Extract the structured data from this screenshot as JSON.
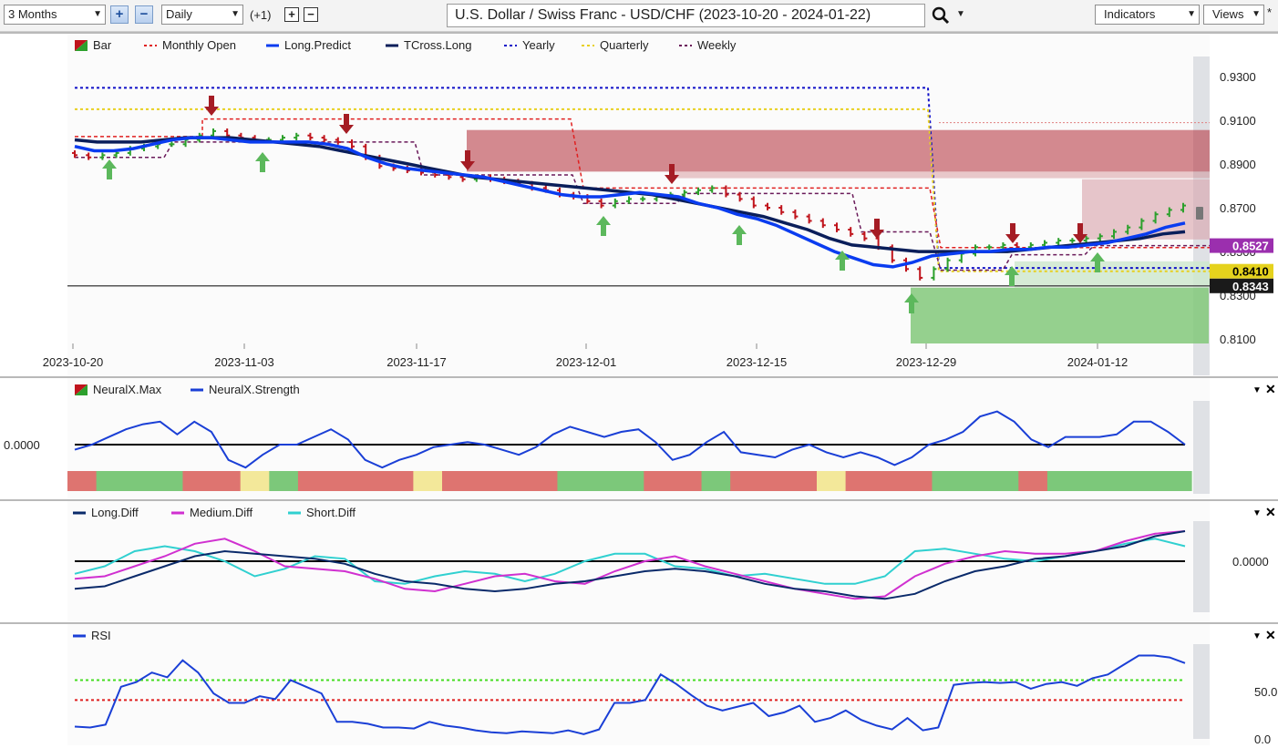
{
  "toolbar": {
    "period": "3 Months",
    "zoom_in": "+",
    "zoom_out": "−",
    "interval": "Daily",
    "offset": "(+1)",
    "plus": "+",
    "minus": "−",
    "title": "U.S. Dollar / Swiss Franc - USD/CHF (2023-10-20 - 2024-01-22)",
    "indicators": "Indicators",
    "views": "Views",
    "asterisk": "*"
  },
  "colors": {
    "bull": "#2ca02c",
    "bear": "#c0141c",
    "long_predict": "#0a3cf0",
    "tcross_long": "#0a1e5a",
    "yearly": "#1010c8",
    "quarterly": "#e8d020",
    "weekly": "#6a1a5a",
    "monthly_open": "#e02020"
  },
  "chart_data": [
    {
      "id": "price",
      "type": "line",
      "legend": [
        {
          "name": "Bar",
          "style": "swatch"
        },
        {
          "name": "Monthly Open",
          "style": "dash",
          "color": "#e02020"
        },
        {
          "name": "Long.Predict",
          "style": "solid",
          "color": "#0a3cf0"
        },
        {
          "name": "TCross.Long",
          "style": "solid",
          "color": "#0a1e5a"
        },
        {
          "name": "Yearly",
          "style": "dash",
          "color": "#1010c8"
        },
        {
          "name": "Quarterly",
          "style": "dash",
          "color": "#e8d020"
        },
        {
          "name": "Weekly",
          "style": "dash",
          "color": "#6a1a5a"
        }
      ],
      "x_labels": [
        "2023-10-20",
        "2023-11-03",
        "2023-11-17",
        "2023-12-01",
        "2023-12-15",
        "2023-12-29",
        "2024-01-12"
      ],
      "y_ticks": [
        "0.9300",
        "0.9100",
        "0.8900",
        "0.8700",
        "0.8500",
        "0.8300",
        "0.8100"
      ],
      "ylim": [
        0.808,
        0.937
      ],
      "price_tags": [
        {
          "label": "0.8527",
          "value": 0.8527,
          "bg": "#9b2fae",
          "fg": "#ffffff"
        },
        {
          "label": "0.8410",
          "value": 0.841,
          "bg": "#e5d21d",
          "fg": "#000000"
        },
        {
          "label": "0.8343",
          "value": 0.8343,
          "bg": "#1a1a1a",
          "fg": "#ffffff"
        }
      ],
      "closes": [
        0.894,
        0.893,
        0.894,
        0.895,
        0.897,
        0.898,
        0.899,
        0.899,
        0.901,
        0.903,
        0.905,
        0.903,
        0.902,
        0.901,
        0.901,
        0.902,
        0.903,
        0.902,
        0.901,
        0.9,
        0.898,
        0.893,
        0.889,
        0.888,
        0.887,
        0.886,
        0.885,
        0.884,
        0.883,
        0.884,
        0.883,
        0.882,
        0.881,
        0.879,
        0.878,
        0.876,
        0.875,
        0.873,
        0.871,
        0.873,
        0.874,
        0.874,
        0.875,
        0.876,
        0.877,
        0.878,
        0.879,
        0.876,
        0.874,
        0.871,
        0.87,
        0.868,
        0.866,
        0.864,
        0.862,
        0.86,
        0.858,
        0.856,
        0.852,
        0.846,
        0.842,
        0.838,
        0.842,
        0.846,
        0.849,
        0.852,
        0.852,
        0.853,
        0.852,
        0.853,
        0.854,
        0.855,
        0.855,
        0.856,
        0.857,
        0.859,
        0.861,
        0.864,
        0.867,
        0.869,
        0.871
      ],
      "long_predict": [
        0.898,
        0.896,
        0.896,
        0.897,
        0.899,
        0.901,
        0.902,
        0.902,
        0.901,
        0.9,
        0.9,
        0.9,
        0.9,
        0.899,
        0.897,
        0.893,
        0.89,
        0.888,
        0.887,
        0.886,
        0.885,
        0.884,
        0.882,
        0.88,
        0.878,
        0.876,
        0.875,
        0.875,
        0.876,
        0.877,
        0.876,
        0.875,
        0.872,
        0.87,
        0.867,
        0.865,
        0.862,
        0.858,
        0.854,
        0.85,
        0.847,
        0.844,
        0.843,
        0.845,
        0.848,
        0.849,
        0.85,
        0.85,
        0.851,
        0.851,
        0.852,
        0.852,
        0.853,
        0.854,
        0.856,
        0.858,
        0.861,
        0.863
      ],
      "tcross_long": [
        0.901,
        0.9,
        0.9,
        0.9,
        0.901,
        0.902,
        0.902,
        0.902,
        0.901,
        0.9,
        0.899,
        0.898,
        0.896,
        0.894,
        0.892,
        0.89,
        0.888,
        0.886,
        0.884,
        0.883,
        0.882,
        0.881,
        0.88,
        0.879,
        0.878,
        0.877,
        0.876,
        0.874,
        0.872,
        0.87,
        0.868,
        0.866,
        0.863,
        0.86,
        0.856,
        0.853,
        0.852,
        0.851,
        0.85,
        0.85,
        0.85,
        0.85,
        0.85,
        0.851,
        0.852,
        0.853,
        0.854,
        0.855,
        0.856,
        0.858,
        0.859
      ],
      "levels": {
        "yearly": 0.9248,
        "quarterly": 0.915,
        "monthly_open": 0.9105,
        "weekly": 0.8527,
        "dark_line": 0.8343
      }
    },
    {
      "id": "neuralx",
      "type": "line",
      "legend": [
        {
          "name": "NeuralX.Max",
          "style": "swatch"
        },
        {
          "name": "NeuralX.Strength",
          "style": "solid",
          "color": "#1a3fd6"
        }
      ],
      "zero_label": "0.0000",
      "strength": [
        -0.2,
        0.0,
        0.3,
        0.6,
        0.8,
        0.9,
        0.4,
        0.9,
        0.5,
        -0.6,
        -0.9,
        -0.4,
        0.0,
        0.0,
        0.3,
        0.6,
        0.2,
        -0.6,
        -0.9,
        -0.6,
        -0.4,
        -0.1,
        0.0,
        0.1,
        0.0,
        -0.2,
        -0.4,
        -0.1,
        0.4,
        0.7,
        0.5,
        0.3,
        0.5,
        0.6,
        0.1,
        -0.6,
        -0.4,
        0.1,
        0.5,
        -0.3,
        -0.4,
        -0.5,
        -0.2,
        0.0,
        -0.3,
        -0.5,
        -0.3,
        -0.5,
        -0.8,
        -0.5,
        0.0,
        0.2,
        0.5,
        1.1,
        1.3,
        0.9,
        0.2,
        -0.1,
        0.3,
        0.3,
        0.3,
        0.4,
        0.9,
        0.9,
        0.5,
        0.0
      ],
      "state_bar": [
        "R",
        "G",
        "G",
        "G",
        "R",
        "R",
        "Y",
        "G",
        "R",
        "R",
        "R",
        "R",
        "Y",
        "R",
        "R",
        "R",
        "R",
        "G",
        "G",
        "G",
        "R",
        "R",
        "G",
        "R",
        "R",
        "R",
        "Y",
        "R",
        "R",
        "R",
        "G",
        "G",
        "G",
        "R",
        "G",
        "G",
        "G",
        "G",
        "G"
      ]
    },
    {
      "id": "diffs",
      "type": "line",
      "legend": [
        {
          "name": "Long.Diff",
          "style": "solid",
          "color": "#0a2a6a"
        },
        {
          "name": "Medium.Diff",
          "style": "solid",
          "color": "#d030d0"
        },
        {
          "name": "Short.Diff",
          "style": "solid",
          "color": "#30d0d0"
        }
      ],
      "zero_label": "0.0000",
      "long_diff": [
        -0.55,
        -0.5,
        -0.3,
        -0.1,
        0.1,
        0.2,
        0.15,
        0.1,
        0.05,
        -0.05,
        -0.25,
        -0.4,
        -0.45,
        -0.55,
        -0.6,
        -0.55,
        -0.45,
        -0.4,
        -0.3,
        -0.2,
        -0.15,
        -0.2,
        -0.3,
        -0.45,
        -0.55,
        -0.6,
        -0.7,
        -0.75,
        -0.65,
        -0.4,
        -0.2,
        -0.1,
        0.05,
        0.1,
        0.2,
        0.3,
        0.5,
        0.6
      ],
      "medium_diff": [
        -0.35,
        -0.3,
        -0.1,
        0.1,
        0.35,
        0.45,
        0.2,
        -0.1,
        -0.15,
        -0.2,
        -0.35,
        -0.55,
        -0.6,
        -0.45,
        -0.3,
        -0.25,
        -0.4,
        -0.45,
        -0.2,
        0.0,
        0.1,
        -0.1,
        -0.25,
        -0.4,
        -0.55,
        -0.65,
        -0.75,
        -0.7,
        -0.3,
        -0.05,
        0.1,
        0.2,
        0.15,
        0.15,
        0.2,
        0.4,
        0.55,
        0.6
      ],
      "short_diff": [
        -0.25,
        -0.1,
        0.2,
        0.3,
        0.2,
        0.0,
        -0.3,
        -0.15,
        0.1,
        0.05,
        -0.4,
        -0.45,
        -0.3,
        -0.2,
        -0.25,
        -0.4,
        -0.25,
        0.0,
        0.15,
        0.15,
        -0.1,
        -0.15,
        -0.3,
        -0.25,
        -0.35,
        -0.45,
        -0.45,
        -0.3,
        0.2,
        0.25,
        0.15,
        0.05,
        0.0,
        0.1,
        0.2,
        0.35,
        0.45,
        0.3
      ]
    },
    {
      "id": "rsi",
      "type": "line",
      "legend": [
        {
          "name": "RSI",
          "style": "solid",
          "color": "#1a3fd6"
        }
      ],
      "y_ticks": [
        "50.0",
        "0.0"
      ],
      "ylim": [
        0,
        100
      ],
      "upper_level": 62,
      "lower_level": 41,
      "values": [
        13,
        12,
        15,
        55,
        60,
        70,
        65,
        83,
        70,
        48,
        38,
        38,
        45,
        42,
        62,
        55,
        48,
        18,
        18,
        16,
        12,
        12,
        11,
        18,
        14,
        12,
        9,
        7,
        6,
        8,
        7,
        6,
        9,
        5,
        10,
        38,
        38,
        41,
        68,
        58,
        46,
        35,
        30,
        34,
        38,
        24,
        28,
        35,
        18,
        22,
        30,
        20,
        14,
        10,
        22,
        9,
        12,
        57,
        59,
        60,
        59,
        60,
        53,
        58,
        60,
        56,
        64,
        68,
        78,
        88,
        88,
        86,
        80
      ]
    }
  ]
}
